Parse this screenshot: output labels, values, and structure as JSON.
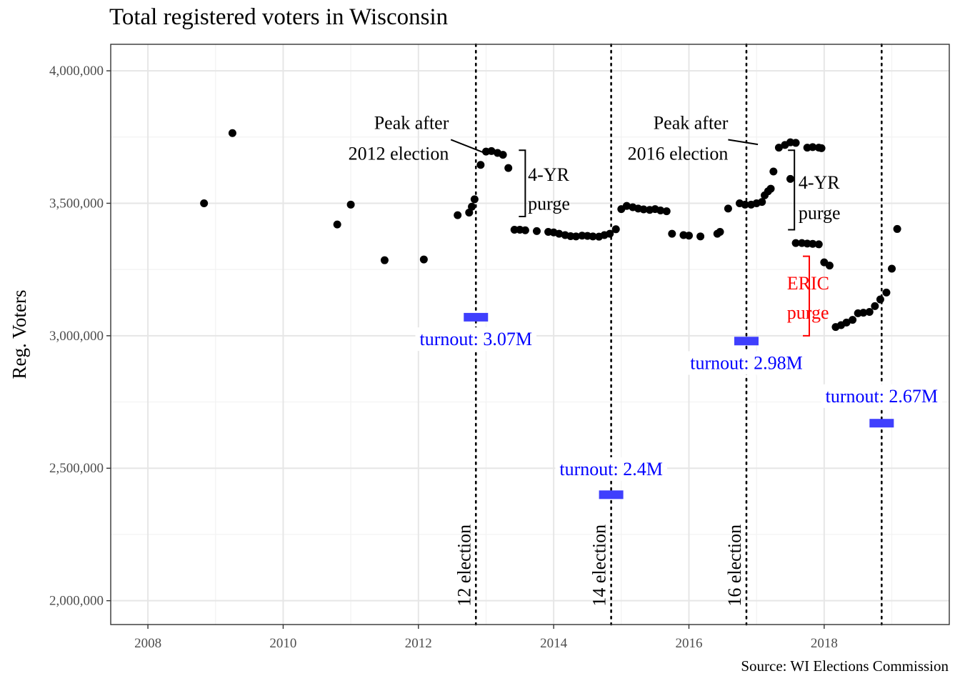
{
  "chart_data": {
    "type": "scatter",
    "title": "Total registered voters in Wisconsin",
    "xlabel": "",
    "ylabel": "Reg. Voters",
    "caption": "Source: WI Elections Commission",
    "xlim": [
      2007.45,
      2019.85
    ],
    "ylim": [
      1910000,
      4100000
    ],
    "x_ticks": [
      2008,
      2010,
      2012,
      2014,
      2016,
      2018
    ],
    "x_tick_labels": [
      "2008",
      "2010",
      "2012",
      "2014",
      "2016",
      "2018"
    ],
    "y_ticks": [
      2000000,
      2500000,
      3000000,
      3500000,
      4000000
    ],
    "y_tick_labels": [
      "2,000,000",
      "2,500,000",
      "3,000,000",
      "3,500,000",
      "4,000,000"
    ],
    "grid": true,
    "series": [
      {
        "color": "#000000",
        "points": [
          [
            2008.83,
            3500000
          ],
          [
            2009.25,
            3765000
          ],
          [
            2010.8,
            3420000
          ],
          [
            2011.0,
            3495000
          ],
          [
            2011.5,
            3285000
          ],
          [
            2012.08,
            3288000
          ],
          [
            2012.58,
            3455000
          ],
          [
            2012.75,
            3465000
          ],
          [
            2012.79,
            3487000
          ],
          [
            2012.83,
            3515000
          ],
          [
            2012.92,
            3645000
          ],
          [
            2013.0,
            3695000
          ],
          [
            2013.08,
            3697000
          ],
          [
            2013.17,
            3690000
          ],
          [
            2013.25,
            3683000
          ],
          [
            2013.33,
            3633000
          ],
          [
            2013.42,
            3400000
          ],
          [
            2013.5,
            3400000
          ],
          [
            2013.58,
            3398000
          ],
          [
            2013.75,
            3395000
          ],
          [
            2013.92,
            3392000
          ],
          [
            2014.0,
            3390000
          ],
          [
            2014.08,
            3385000
          ],
          [
            2014.17,
            3380000
          ],
          [
            2014.25,
            3376000
          ],
          [
            2014.33,
            3375000
          ],
          [
            2014.42,
            3378000
          ],
          [
            2014.5,
            3377000
          ],
          [
            2014.58,
            3375000
          ],
          [
            2014.67,
            3374000
          ],
          [
            2014.75,
            3380000
          ],
          [
            2014.83,
            3385000
          ],
          [
            2014.92,
            3402000
          ],
          [
            2015.0,
            3478000
          ],
          [
            2015.08,
            3490000
          ],
          [
            2015.17,
            3485000
          ],
          [
            2015.25,
            3480000
          ],
          [
            2015.33,
            3477000
          ],
          [
            2015.42,
            3475000
          ],
          [
            2015.5,
            3478000
          ],
          [
            2015.58,
            3473000
          ],
          [
            2015.67,
            3470000
          ],
          [
            2015.75,
            3385000
          ],
          [
            2015.92,
            3380000
          ],
          [
            2016.0,
            3378000
          ],
          [
            2016.17,
            3375000
          ],
          [
            2016.42,
            3385000
          ],
          [
            2016.46,
            3392000
          ],
          [
            2016.58,
            3480000
          ],
          [
            2016.75,
            3500000
          ],
          [
            2016.83,
            3495000
          ],
          [
            2016.92,
            3495000
          ],
          [
            2017.0,
            3500000
          ],
          [
            2017.08,
            3505000
          ],
          [
            2017.12,
            3530000
          ],
          [
            2017.17,
            3545000
          ],
          [
            2017.21,
            3555000
          ],
          [
            2017.25,
            3620000
          ],
          [
            2017.33,
            3710000
          ],
          [
            2017.42,
            3720000
          ],
          [
            2017.5,
            3730000
          ],
          [
            2017.58,
            3728000
          ],
          [
            2017.75,
            3710000
          ],
          [
            2017.83,
            3712000
          ],
          [
            2017.92,
            3710000
          ],
          [
            2017.96,
            3708000
          ],
          [
            2017.5,
            3592000
          ],
          [
            2017.58,
            3350000
          ],
          [
            2017.67,
            3350000
          ],
          [
            2017.75,
            3348000
          ],
          [
            2017.83,
            3347000
          ],
          [
            2017.92,
            3345000
          ],
          [
            2018.0,
            3277000
          ],
          [
            2018.08,
            3265000
          ],
          [
            2018.17,
            3033000
          ],
          [
            2018.25,
            3040000
          ],
          [
            2018.33,
            3050000
          ],
          [
            2018.42,
            3060000
          ],
          [
            2018.5,
            3085000
          ],
          [
            2018.58,
            3087000
          ],
          [
            2018.67,
            3090000
          ],
          [
            2018.75,
            3112000
          ],
          [
            2018.83,
            3137000
          ],
          [
            2018.92,
            3163000
          ],
          [
            2019.0,
            3253000
          ],
          [
            2019.08,
            3403000
          ]
        ]
      }
    ],
    "elections": [
      {
        "x": 2012.85,
        "label": "12 election"
      },
      {
        "x": 2014.85,
        "label": "14 election"
      },
      {
        "x": 2016.85,
        "label": "16 election"
      },
      {
        "x": 2018.85,
        "label": ""
      }
    ],
    "turnout": [
      {
        "x": 2012.85,
        "value": 3070000,
        "label": "turnout: 3.07M",
        "label_y": 2975000
      },
      {
        "x": 2014.85,
        "value": 2400000,
        "label": "turnout: 2.4M",
        "label_y": 2485000
      },
      {
        "x": 2016.85,
        "value": 2980000,
        "label": "turnout: 2.98M",
        "label_y": 2885000
      },
      {
        "x": 2018.85,
        "value": 2670000,
        "label": "turnout: 2.67M",
        "label_y": 2760000
      }
    ],
    "turnout_color": "#3f3ffd",
    "turnout_text_color": "#0000ff",
    "annotations": [
      {
        "text": "Peak after",
        "x": 2012.45,
        "y": 3780000,
        "anchor": "end"
      },
      {
        "text": "2012 election",
        "x": 2012.45,
        "y": 3665000,
        "anchor": "end"
      },
      {
        "text": "Peak after",
        "x": 2016.58,
        "y": 3780000,
        "anchor": "end"
      },
      {
        "text": "2016 election",
        "x": 2016.58,
        "y": 3665000,
        "anchor": "end"
      },
      {
        "text": "4-YR",
        "x": 2013.62,
        "y": 3585000,
        "anchor": "start"
      },
      {
        "text": "purge",
        "x": 2013.62,
        "y": 3475000,
        "anchor": "start"
      },
      {
        "text": "4-YR",
        "x": 2017.62,
        "y": 3555000,
        "anchor": "start"
      },
      {
        "text": "purge",
        "x": 2017.62,
        "y": 3440000,
        "anchor": "start"
      },
      {
        "text": "ERIC",
        "x": 2017.45,
        "y": 3175000,
        "anchor": "start",
        "color": "#ff0000"
      },
      {
        "text": "purge",
        "x": 2017.45,
        "y": 3065000,
        "anchor": "start",
        "color": "#ff0000"
      }
    ],
    "pointers": [
      {
        "x1": 2012.48,
        "y1": 3740000,
        "x2": 2012.98,
        "y2": 3690000
      },
      {
        "x1": 2016.58,
        "y1": 3740000,
        "x2": 2017.02,
        "y2": 3722000
      }
    ],
    "brackets": [
      {
        "x": 2013.58,
        "y_top": 3700000,
        "y_bottom": 3450000,
        "color": "#000000"
      },
      {
        "x": 2017.56,
        "y_top": 3700000,
        "y_bottom": 3400000,
        "color": "#000000"
      },
      {
        "x": 2017.78,
        "y_top": 3300000,
        "y_bottom": 3000000,
        "color": "#ff0000"
      }
    ]
  }
}
